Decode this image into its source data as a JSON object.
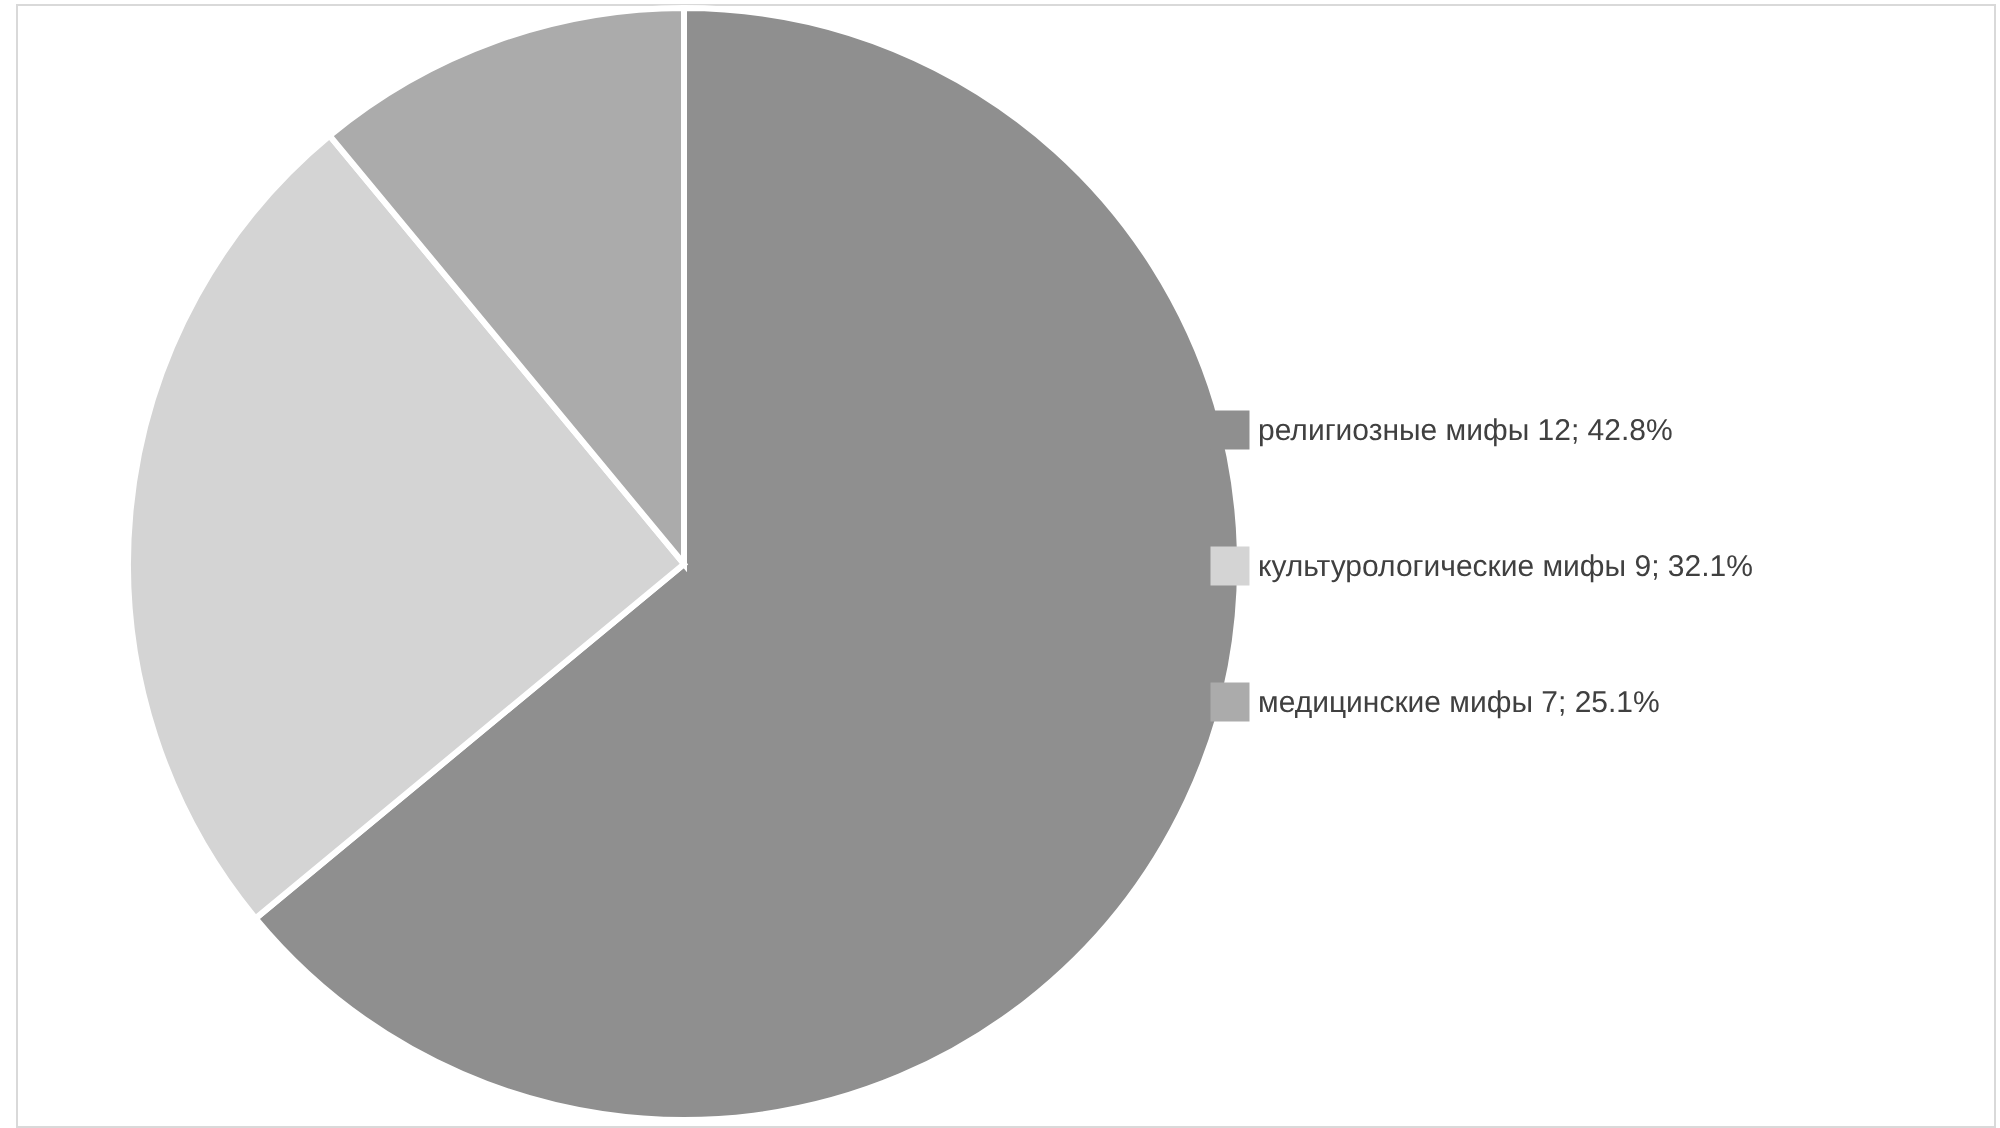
{
  "chart_data": {
    "type": "pie",
    "categories": [
      "религиозные мифы 12; 42.8%",
      "культурологические мифы 9; 32.1%",
      "медицинские мифы 7; 25.1%"
    ],
    "values": [
      64,
      25,
      11
    ],
    "colors": [
      "#8f8f8f",
      "#d4d4d4",
      "#ababab"
    ],
    "legend": "right"
  }
}
